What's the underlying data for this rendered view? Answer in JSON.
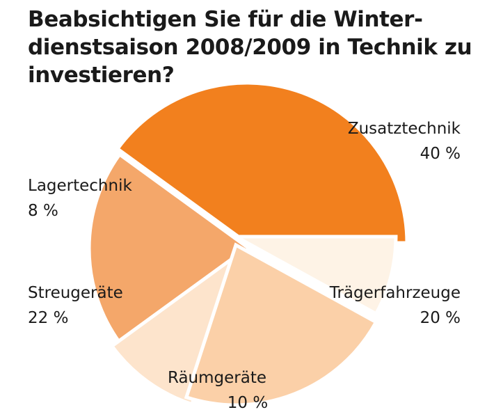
{
  "chart_data": {
    "type": "pie",
    "title_lines": [
      "Beabsichtigen Sie für die Winter-",
      "dienstsaison 2008/2009 in Technik zu",
      "investieren?"
    ],
    "slices": [
      {
        "name": "Zusatztechnik",
        "value": 40,
        "value_label": "40 %",
        "color": "#F2801E"
      },
      {
        "name": "Trägerfahrzeuge",
        "value": 20,
        "value_label": "20 %",
        "color": "#F4A76A"
      },
      {
        "name": "Räumgeräte",
        "value": 10,
        "value_label": "10 %",
        "color": "#FDE4CC"
      },
      {
        "name": "Streugeräte",
        "value": 22,
        "value_label": "22 %",
        "color": "#FBD0A8"
      },
      {
        "name": "Lagertechnik",
        "value": 8,
        "value_label": "8 %",
        "color": "#FEF3E6"
      }
    ]
  }
}
